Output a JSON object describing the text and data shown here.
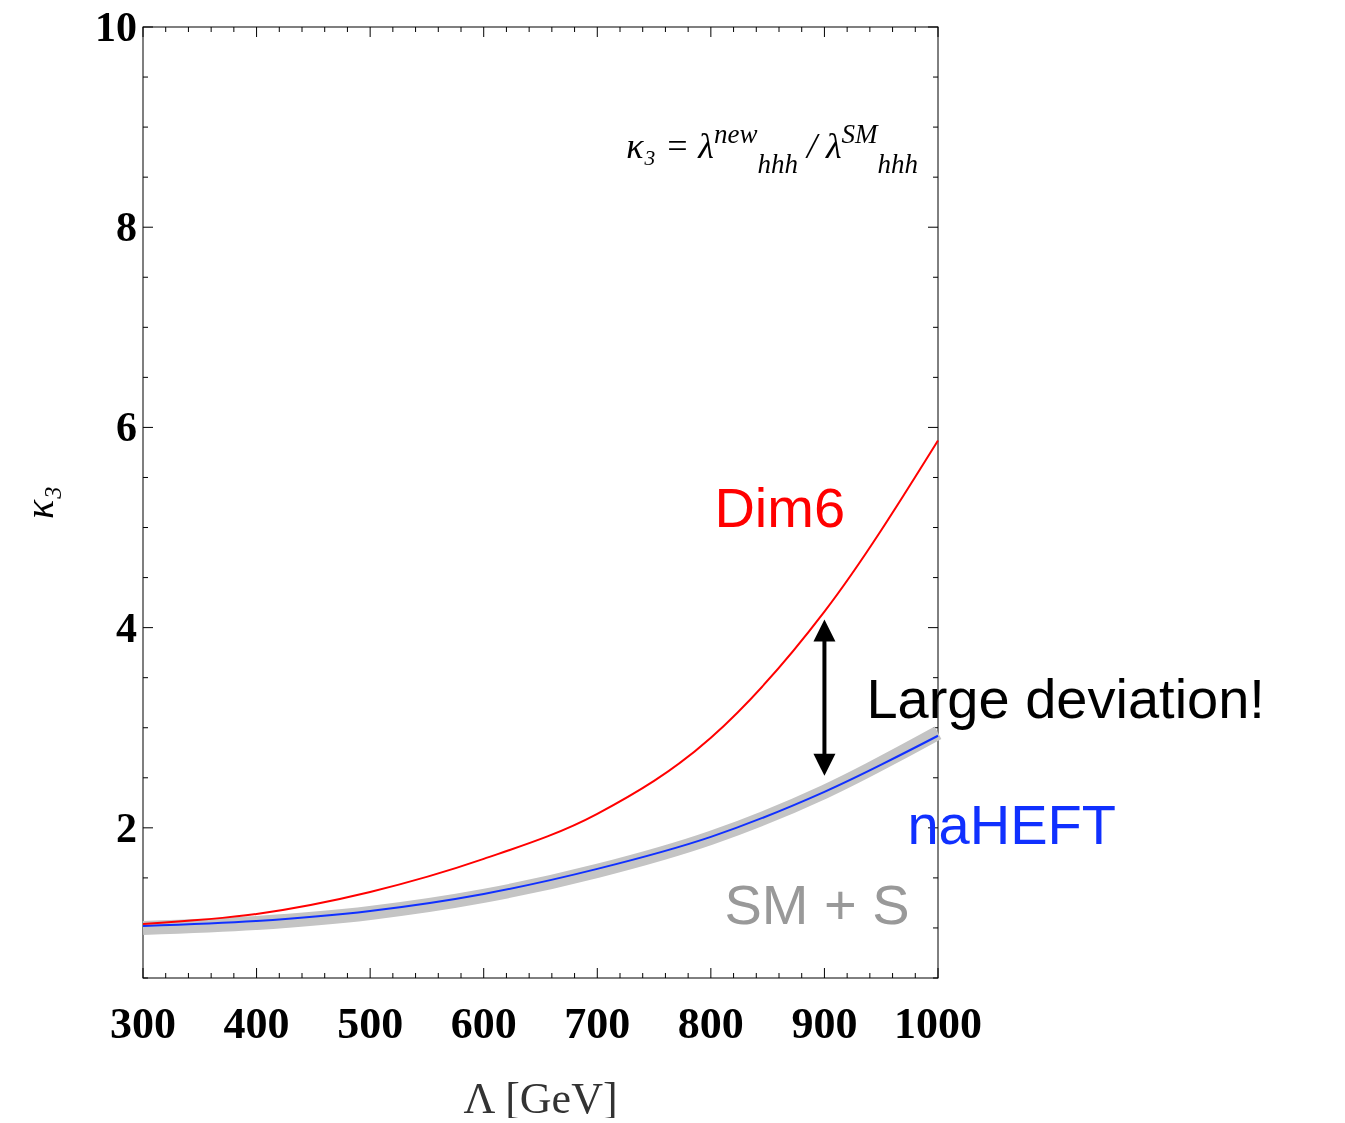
{
  "chart_data": {
    "type": "line",
    "xlabel": "Λ [GeV]",
    "ylabel": "κ₃",
    "x": [
      300,
      400,
      500,
      600,
      700,
      800,
      900,
      1000
    ],
    "series": [
      {
        "name": "Dim6",
        "color": "#ff0000",
        "values": [
          1.04,
          1.14,
          1.36,
          1.69,
          2.14,
          2.9,
          4.16,
          5.87
        ]
      },
      {
        "name": "naHEFT",
        "color": "#1030ff",
        "values": [
          1.02,
          1.07,
          1.17,
          1.34,
          1.59,
          1.91,
          2.36,
          2.92
        ]
      },
      {
        "name": "SM + S",
        "color": "#c4c4c4",
        "values": [
          1.0,
          1.05,
          1.15,
          1.32,
          1.57,
          1.9,
          2.36,
          2.95
        ]
      }
    ],
    "xlim": [
      300,
      1000
    ],
    "ylim": [
      0.5,
      10
    ],
    "xticks": [
      300,
      {
        "value": 320,
        "label": null
      },
      {
        "value": 340,
        "label": null
      },
      {
        "value": 360,
        "label": null
      },
      {
        "value": 380,
        "label": null
      },
      400,
      {
        "value": 420,
        "label": null
      },
      {
        "value": 440,
        "label": null
      },
      {
        "value": 460,
        "label": null
      },
      {
        "value": 480,
        "label": null
      },
      500,
      {
        "value": 520,
        "label": null
      },
      {
        "value": 540,
        "label": null
      },
      {
        "value": 560,
        "label": null
      },
      {
        "value": 580,
        "label": null
      },
      600,
      {
        "value": 620,
        "label": null
      },
      {
        "value": 640,
        "label": null
      },
      {
        "value": 660,
        "label": null
      },
      {
        "value": 680,
        "label": null
      },
      700,
      {
        "value": 720,
        "label": null
      },
      {
        "value": 740,
        "label": null
      },
      {
        "value": 760,
        "label": null
      },
      {
        "value": 780,
        "label": null
      },
      800,
      {
        "value": 820,
        "label": null
      },
      {
        "value": 840,
        "label": null
      },
      {
        "value": 860,
        "label": null
      },
      {
        "value": 880,
        "label": null
      },
      900,
      {
        "value": 920,
        "label": null
      },
      {
        "value": 940,
        "label": null
      },
      {
        "value": 960,
        "label": null
      },
      {
        "value": 980,
        "label": null
      },
      1000
    ],
    "yticks": [
      {
        "value": 0.5,
        "label": null
      },
      {
        "value": 1,
        "label": null
      },
      {
        "value": 1.5,
        "label": null
      },
      2,
      {
        "value": 2.5,
        "label": null
      },
      {
        "value": 3,
        "label": null
      },
      {
        "value": 3.5,
        "label": null
      },
      4,
      {
        "value": 4.5,
        "label": null
      },
      {
        "value": 5,
        "label": null
      },
      {
        "value": 5.5,
        "label": null
      },
      6,
      {
        "value": 6.5,
        "label": null
      },
      {
        "value": 7,
        "label": null
      },
      {
        "value": 7.5,
        "label": null
      },
      8,
      {
        "value": 8.5,
        "label": null
      },
      {
        "value": 9,
        "label": null
      },
      {
        "value": 9.5,
        "label": null
      },
      10
    ],
    "grid": false,
    "marker": "none",
    "line_style": "solid",
    "annotations": [
      "κ₃ = λ$^{new}$$_{hhh}$ / λ$^{SM}$$_{hhh}$",
      "Large deviation!"
    ]
  }
}
